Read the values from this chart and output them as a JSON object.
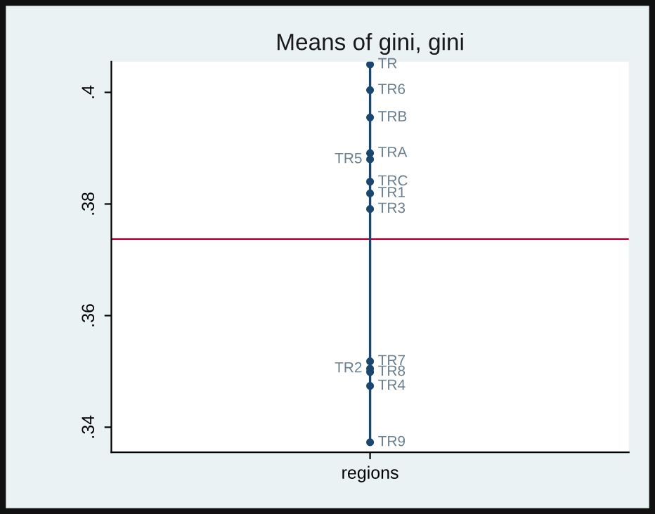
{
  "chart_data": {
    "type": "scatter",
    "title": "Means of gini, gini",
    "categories": [
      "regions"
    ],
    "series": [
      {
        "name": "TR",
        "color": "#1a476f",
        "values": [
          0.405
        ]
      },
      {
        "name": "TR6",
        "color": "#1a476f",
        "values": [
          0.4004
        ]
      },
      {
        "name": "TRB",
        "color": "#1a476f",
        "values": [
          0.3955
        ]
      },
      {
        "name": "TRA",
        "color": "#1a476f",
        "values": [
          0.3891
        ]
      },
      {
        "name": "TR5",
        "color": "#1a476f",
        "values": [
          0.388
        ]
      },
      {
        "name": "TRC",
        "color": "#1a476f",
        "values": [
          0.384
        ]
      },
      {
        "name": "TR1",
        "color": "#1a476f",
        "values": [
          0.3819
        ]
      },
      {
        "name": "TR3",
        "color": "#1a476f",
        "values": [
          0.3791
        ]
      },
      {
        "name": "TR7",
        "color": "#1a476f",
        "values": [
          0.3518
        ]
      },
      {
        "name": "TR2",
        "color": "#1a476f",
        "values": [
          0.3505
        ]
      },
      {
        "name": "TR8",
        "color": "#1a476f",
        "values": [
          0.3499
        ]
      },
      {
        "name": "TR4",
        "color": "#1a476f",
        "values": [
          0.3474
        ]
      },
      {
        "name": "TR9",
        "color": "#1a476f",
        "values": [
          0.3373
        ]
      }
    ],
    "ylim": [
      0.3355,
      0.4055
    ],
    "yticks": [
      {
        "value": 0.34,
        "label": ".34"
      },
      {
        "value": 0.36,
        "label": ".36"
      },
      {
        "value": 0.38,
        "label": ".38"
      },
      {
        "value": 0.4,
        "label": ".4"
      }
    ],
    "ref_lines": [
      {
        "axis": "y",
        "value": 0.3737,
        "color": "#c10534"
      }
    ],
    "marker": "circle",
    "grid": false,
    "legend": false
  }
}
